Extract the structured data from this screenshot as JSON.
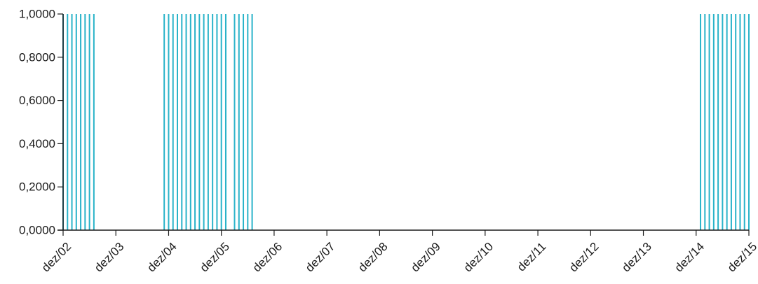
{
  "colors": {
    "series": "#29b3c9",
    "axis": "#1a1a1a",
    "background": "#ffffff"
  },
  "chart_data": {
    "type": "bar",
    "title": "",
    "xlabel": "",
    "ylabel": "",
    "ylim": [
      0,
      1
    ],
    "grid": false,
    "legend": "none",
    "y_ticks": [
      "0,0000",
      "0,2000",
      "0,4000",
      "0,6000",
      "0,8000",
      "1,0000"
    ],
    "x_ticks": [
      "dez/02",
      "dez/03",
      "dez/04",
      "dez/05",
      "dez/06",
      "dez/07",
      "dez/08",
      "dez/09",
      "dez/10",
      "dez/11",
      "dez/12",
      "dez/13",
      "dez/14",
      "dez/15"
    ],
    "x_start": "2002-12",
    "x_end": "2015-12",
    "frequency": "monthly",
    "series": [
      {
        "value": 1,
        "periods": [
          [
            "2002-12",
            "2003-07"
          ],
          [
            "2004-11",
            "2006-01"
          ],
          [
            "2006-03",
            "2006-07"
          ],
          [
            "2015-01",
            "2015-12"
          ]
        ]
      }
    ]
  }
}
